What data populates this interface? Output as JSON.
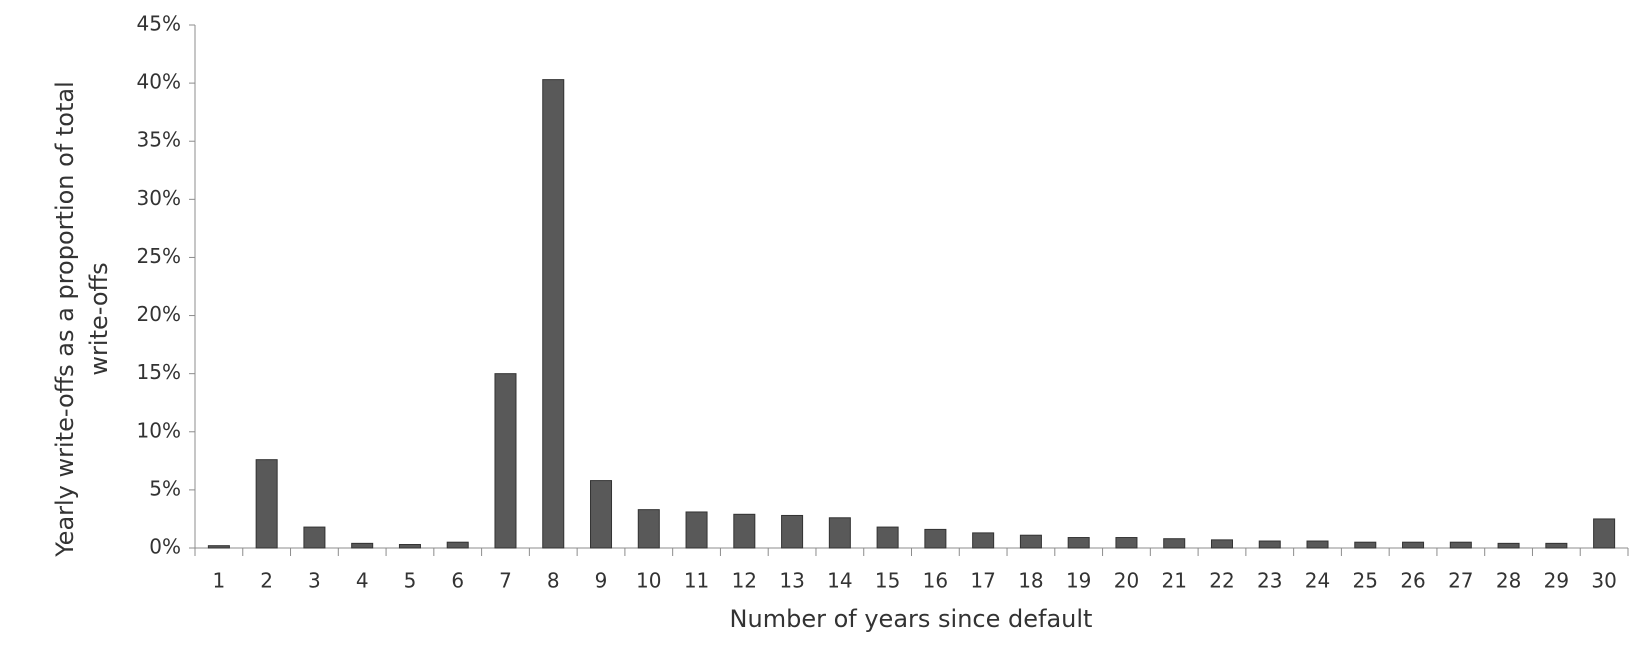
{
  "chart_data": {
    "type": "bar",
    "x_label": "Number of years since default",
    "y_label": "Yearly write-offs as a proportion of total write-offs",
    "categories": [
      "1",
      "2",
      "3",
      "4",
      "5",
      "6",
      "7",
      "8",
      "9",
      "10",
      "11",
      "12",
      "13",
      "14",
      "15",
      "16",
      "17",
      "18",
      "19",
      "20",
      "21",
      "22",
      "23",
      "24",
      "25",
      "26",
      "27",
      "28",
      "29",
      "30"
    ],
    "values": [
      0.2,
      7.6,
      1.8,
      0.4,
      0.3,
      0.5,
      15.0,
      40.3,
      5.8,
      3.3,
      3.1,
      2.9,
      2.8,
      2.6,
      1.8,
      1.6,
      1.3,
      1.1,
      0.9,
      0.9,
      0.8,
      0.7,
      0.6,
      0.6,
      0.5,
      0.5,
      0.5,
      0.4,
      0.4,
      2.5
    ],
    "color": "#595959",
    "ylim": [
      0,
      45
    ],
    "yticks": [
      {
        "value": 0,
        "label": "0%"
      },
      {
        "value": 5,
        "label": "5%"
      },
      {
        "value": 10,
        "label": "10%"
      },
      {
        "value": 15,
        "label": "15%"
      },
      {
        "value": 20,
        "label": "20%"
      },
      {
        "value": 25,
        "label": "25%"
      },
      {
        "value": 30,
        "label": "30%"
      },
      {
        "value": 35,
        "label": "35%"
      },
      {
        "value": 40,
        "label": "40%"
      },
      {
        "value": 45,
        "label": "45%"
      }
    ],
    "grid": true
  }
}
